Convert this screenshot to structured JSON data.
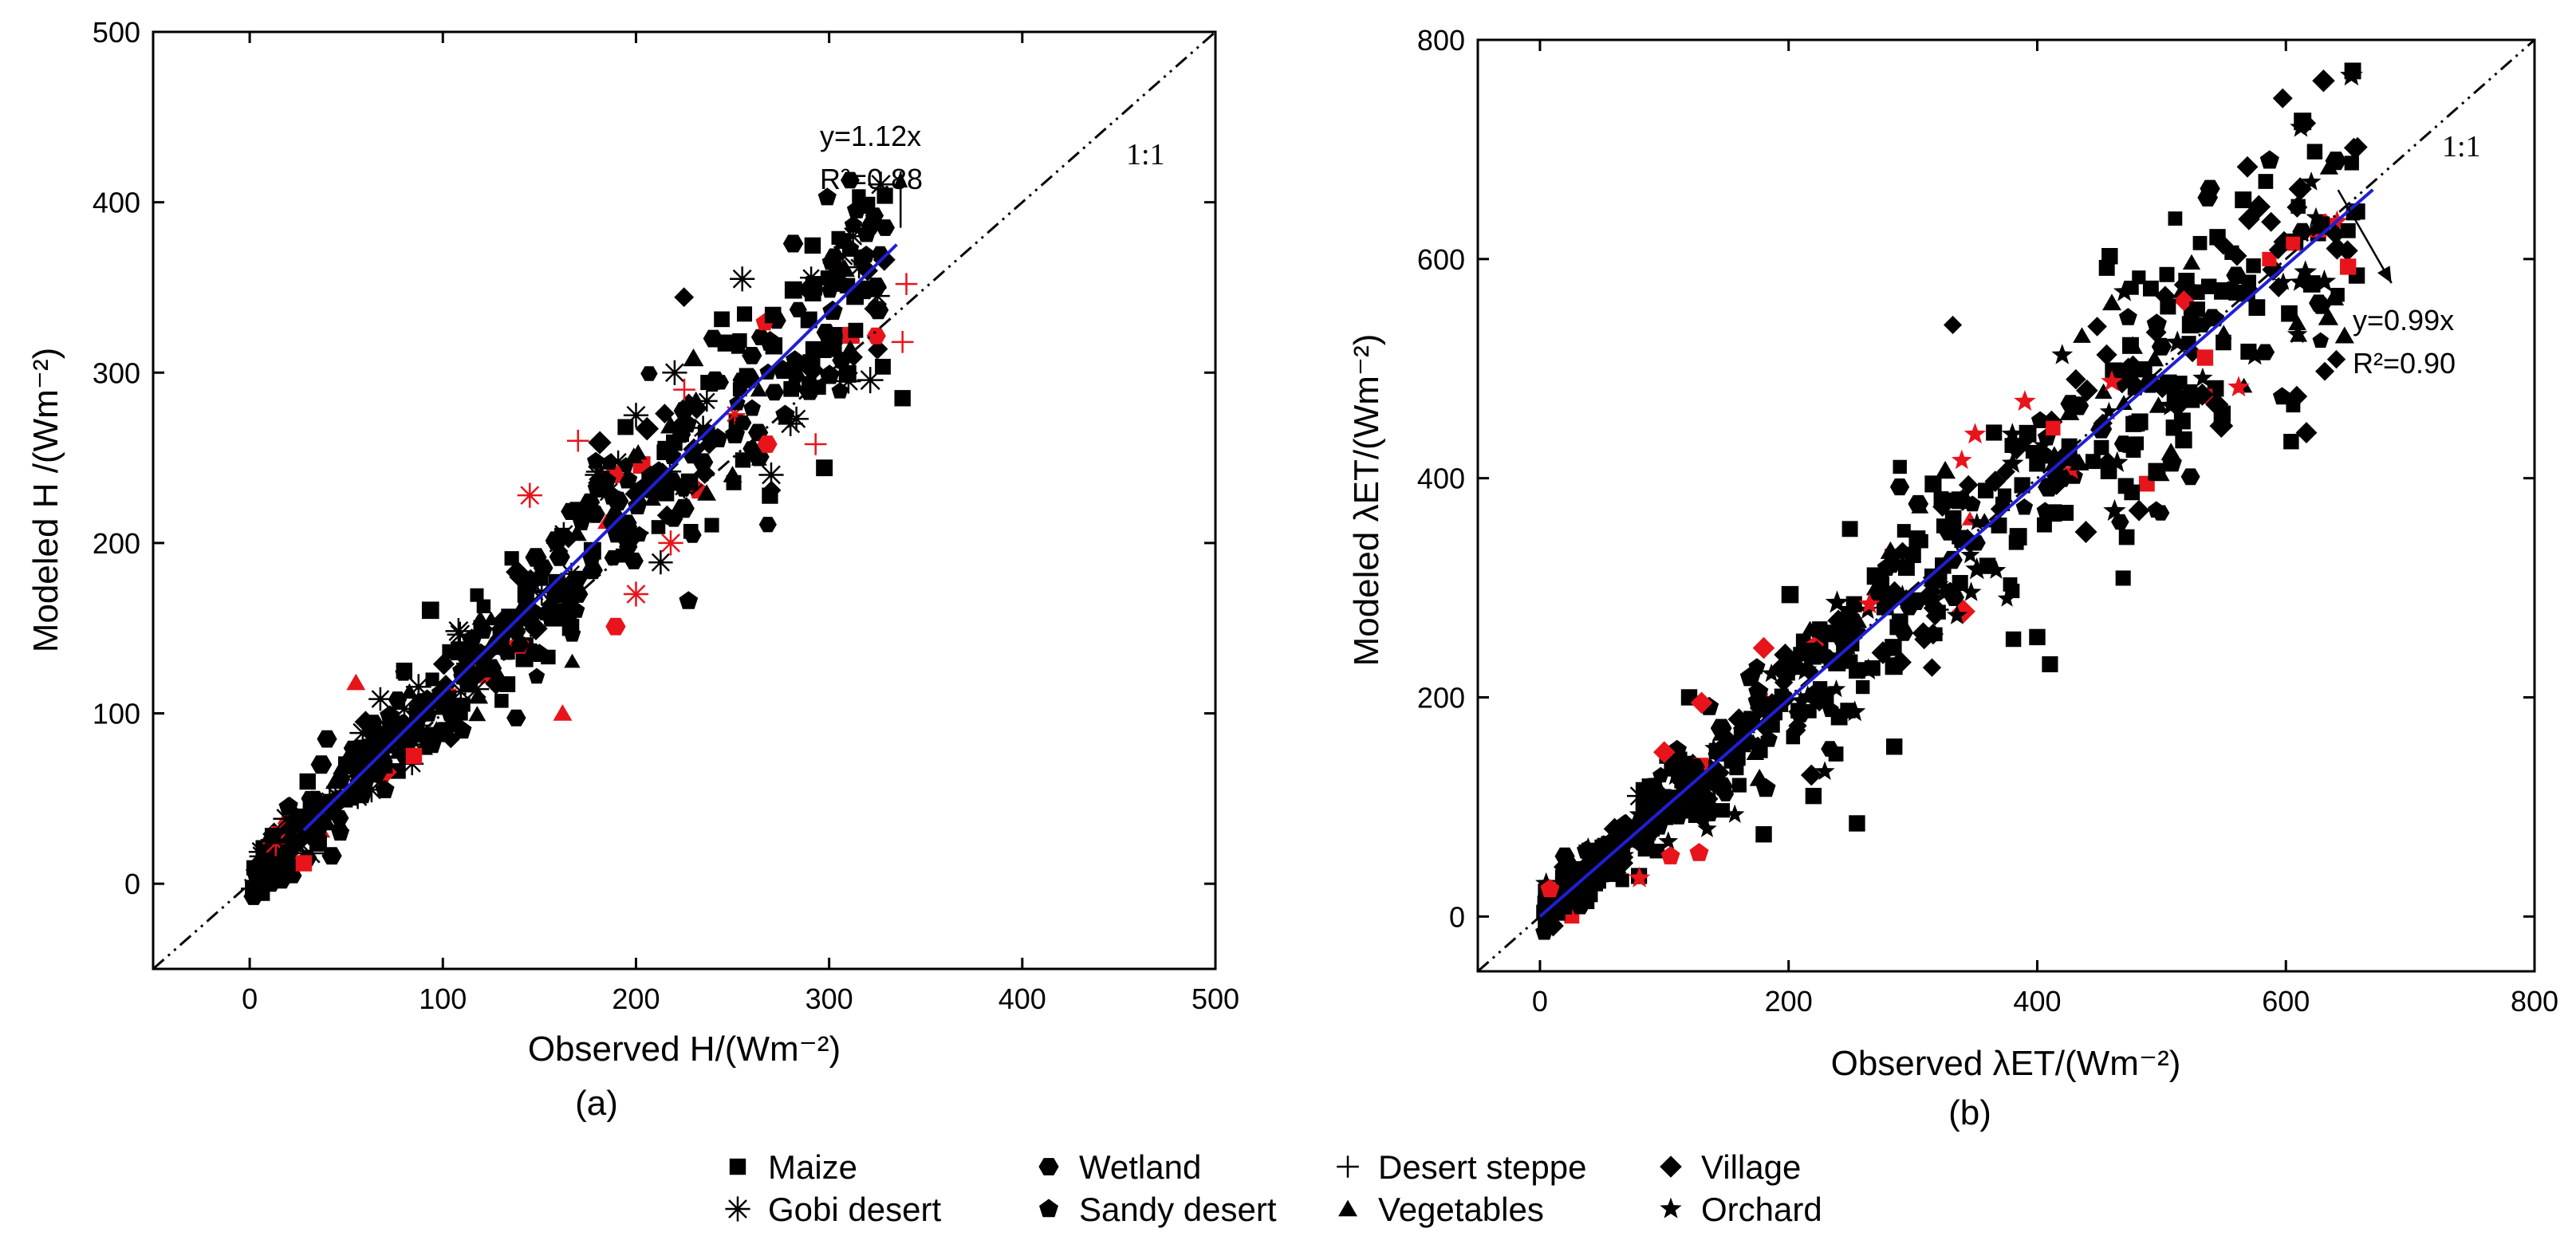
{
  "chart_data": [
    {
      "type": "scatter",
      "panel_label": "(a)",
      "xlabel": "Observed H/(Wm⁻²)",
      "ylabel": "Modeled H /(Wm⁻²)",
      "xlim": [
        -50,
        500
      ],
      "ylim": [
        -50,
        500
      ],
      "xticks": [
        0,
        100,
        200,
        300,
        400,
        500
      ],
      "yticks": [
        0,
        100,
        200,
        300,
        400,
        500
      ],
      "one_to_one_label": "1:1",
      "fit": {
        "slope": 1.12,
        "x_range": [
          28,
          335
        ],
        "equation": "y=1.12x",
        "r2_label": "R²=0.88",
        "color": "#1f1fd6"
      },
      "annotation_arrow": {
        "from": [
          337,
          385
        ],
        "to": [
          337,
          418
        ]
      },
      "sample_points": [
        {
          "x": 5,
          "y": 10,
          "m": "hexagon",
          "c": "black"
        },
        {
          "x": 12,
          "y": 28,
          "m": "square",
          "c": "black"
        },
        {
          "x": 20,
          "y": 45,
          "m": "pentagon",
          "c": "black"
        },
        {
          "x": 30,
          "y": 60,
          "m": "square",
          "c": "black"
        },
        {
          "x": 40,
          "y": 85,
          "m": "hexagon",
          "c": "black"
        },
        {
          "x": 50,
          "y": 70,
          "m": "square",
          "c": "black"
        },
        {
          "x": 60,
          "y": 95,
          "m": "diamond",
          "c": "black"
        },
        {
          "x": 70,
          "y": 55,
          "m": "pentagon",
          "c": "black"
        },
        {
          "x": 80,
          "y": 125,
          "m": "square",
          "c": "black"
        },
        {
          "x": 90,
          "y": 80,
          "m": "triangle",
          "c": "black"
        },
        {
          "x": 100,
          "y": 110,
          "m": "hexagon",
          "c": "black"
        },
        {
          "x": 110,
          "y": 90,
          "m": "pentagon",
          "c": "black"
        },
        {
          "x": 120,
          "y": 150,
          "m": "square",
          "c": "black"
        },
        {
          "x": 130,
          "y": 120,
          "m": "triangle",
          "c": "black"
        },
        {
          "x": 140,
          "y": 180,
          "m": "diamond",
          "c": "black"
        },
        {
          "x": 150,
          "y": 135,
          "m": "pentagon",
          "c": "black"
        },
        {
          "x": 160,
          "y": 200,
          "m": "asterisk",
          "c": "black"
        },
        {
          "x": 170,
          "y": 170,
          "m": "hexagon",
          "c": "black"
        },
        {
          "x": 180,
          "y": 240,
          "m": "asterisk",
          "c": "black"
        },
        {
          "x": 190,
          "y": 205,
          "m": "pentagon",
          "c": "black"
        },
        {
          "x": 200,
          "y": 275,
          "m": "asterisk",
          "c": "black"
        },
        {
          "x": 210,
          "y": 230,
          "m": "hexagon",
          "c": "black"
        },
        {
          "x": 220,
          "y": 300,
          "m": "asterisk",
          "c": "black"
        },
        {
          "x": 230,
          "y": 255,
          "m": "diamond",
          "c": "black"
        },
        {
          "x": 240,
          "y": 320,
          "m": "hexagon",
          "c": "black"
        },
        {
          "x": 250,
          "y": 240,
          "m": "triangle",
          "c": "black"
        },
        {
          "x": 255,
          "y": 355,
          "m": "asterisk",
          "c": "black"
        },
        {
          "x": 260,
          "y": 310,
          "m": "hexagon",
          "c": "black"
        },
        {
          "x": 270,
          "y": 240,
          "m": "asterisk",
          "c": "black"
        },
        {
          "x": 280,
          "y": 270,
          "m": "asterisk",
          "c": "black"
        },
        {
          "x": 305,
          "y": 360,
          "m": "hexagon",
          "c": "black"
        },
        {
          "x": 310,
          "y": 295,
          "m": "asterisk",
          "c": "black"
        },
        {
          "x": 325,
          "y": 345,
          "m": "asterisk",
          "c": "black"
        },
        {
          "x": 338,
          "y": 285,
          "m": "square",
          "c": "black"
        },
        {
          "x": 28,
          "y": 12,
          "m": "square",
          "c": "red"
        },
        {
          "x": 55,
          "y": 118,
          "m": "triangle",
          "c": "red"
        },
        {
          "x": 85,
          "y": 75,
          "m": "square",
          "c": "red"
        },
        {
          "x": 145,
          "y": 228,
          "m": "asterisk",
          "c": "red"
        },
        {
          "x": 162,
          "y": 100,
          "m": "triangle",
          "c": "red"
        },
        {
          "x": 170,
          "y": 260,
          "m": "plus",
          "c": "red"
        },
        {
          "x": 200,
          "y": 170,
          "m": "asterisk",
          "c": "red"
        },
        {
          "x": 218,
          "y": 200,
          "m": "asterisk",
          "c": "red"
        },
        {
          "x": 225,
          "y": 290,
          "m": "plus",
          "c": "red"
        },
        {
          "x": 268,
          "y": 258,
          "m": "hexagon",
          "c": "red"
        },
        {
          "x": 293,
          "y": 258,
          "m": "plus",
          "c": "red"
        },
        {
          "x": 338,
          "y": 318,
          "m": "plus",
          "c": "red"
        },
        {
          "x": 340,
          "y": 352,
          "m": "plus",
          "c": "red"
        }
      ]
    },
    {
      "type": "scatter",
      "panel_label": "(b)",
      "xlabel": "Observed λET/(Wm⁻²)",
      "ylabel": "Modeled λET/(Wm⁻²)",
      "xlim": [
        -50,
        800
      ],
      "ylim": [
        -50,
        800
      ],
      "xticks": [
        0,
        200,
        400,
        600,
        800
      ],
      "yticks": [
        0,
        200,
        400,
        600,
        800
      ],
      "one_to_one_label": "1:1",
      "fit": {
        "slope": 0.99,
        "x_range": [
          0,
          670
        ],
        "equation": "y=0.99x",
        "r2_label": "R²=0.90",
        "color": "#1f1fd6"
      },
      "annotation_arrow": {
        "from": [
          642,
          663
        ],
        "to": [
          685,
          578
        ]
      },
      "sample_points": [
        {
          "x": 5,
          "y": 30,
          "m": "star",
          "c": "black"
        },
        {
          "x": 20,
          "y": 55,
          "m": "hexagon",
          "c": "black"
        },
        {
          "x": 40,
          "y": 60,
          "m": "square",
          "c": "black"
        },
        {
          "x": 60,
          "y": 80,
          "m": "diamond",
          "c": "black"
        },
        {
          "x": 80,
          "y": 110,
          "m": "asterisk",
          "c": "black"
        },
        {
          "x": 100,
          "y": 100,
          "m": "pentagon",
          "c": "black"
        },
        {
          "x": 120,
          "y": 200,
          "m": "square",
          "c": "black"
        },
        {
          "x": 140,
          "y": 120,
          "m": "plus",
          "c": "black"
        },
        {
          "x": 160,
          "y": 180,
          "m": "diamond",
          "c": "black"
        },
        {
          "x": 180,
          "y": 75,
          "m": "square",
          "c": "black"
        },
        {
          "x": 200,
          "y": 230,
          "m": "hexagon",
          "c": "black"
        },
        {
          "x": 220,
          "y": 110,
          "m": "square",
          "c": "black"
        },
        {
          "x": 240,
          "y": 270,
          "m": "diamond",
          "c": "black"
        },
        {
          "x": 255,
          "y": 85,
          "m": "square",
          "c": "black"
        },
        {
          "x": 270,
          "y": 300,
          "m": "triangle",
          "c": "black"
        },
        {
          "x": 285,
          "y": 155,
          "m": "square",
          "c": "black"
        },
        {
          "x": 300,
          "y": 330,
          "m": "square",
          "c": "black"
        },
        {
          "x": 320,
          "y": 280,
          "m": "plus",
          "c": "black"
        },
        {
          "x": 340,
          "y": 380,
          "m": "diamond",
          "c": "black"
        },
        {
          "x": 360,
          "y": 320,
          "m": "square",
          "c": "black"
        },
        {
          "x": 380,
          "y": 440,
          "m": "star",
          "c": "black"
        },
        {
          "x": 400,
          "y": 255,
          "m": "square",
          "c": "black"
        },
        {
          "x": 420,
          "y": 400,
          "m": "hexagon",
          "c": "black"
        },
        {
          "x": 440,
          "y": 480,
          "m": "diamond",
          "c": "black"
        },
        {
          "x": 460,
          "y": 560,
          "m": "triangle",
          "c": "black"
        },
        {
          "x": 470,
          "y": 570,
          "m": "star",
          "c": "black"
        },
        {
          "x": 480,
          "y": 450,
          "m": "square",
          "c": "black"
        },
        {
          "x": 500,
          "y": 520,
          "m": "hexagon",
          "c": "black"
        },
        {
          "x": 520,
          "y": 580,
          "m": "square",
          "c": "black"
        },
        {
          "x": 545,
          "y": 620,
          "m": "square",
          "c": "black"
        },
        {
          "x": 560,
          "y": 585,
          "m": "hexagon",
          "c": "black"
        },
        {
          "x": 575,
          "y": 512,
          "m": "star",
          "c": "black"
        },
        {
          "x": 612,
          "y": 720,
          "m": "star",
          "c": "black"
        },
        {
          "x": 8,
          "y": 25,
          "m": "pentagon",
          "c": "red"
        },
        {
          "x": 80,
          "y": 35,
          "m": "star",
          "c": "red"
        },
        {
          "x": 100,
          "y": 150,
          "m": "diamond",
          "c": "red"
        },
        {
          "x": 105,
          "y": 55,
          "m": "pentagon",
          "c": "red"
        },
        {
          "x": 128,
          "y": 58,
          "m": "pentagon",
          "c": "red"
        },
        {
          "x": 130,
          "y": 195,
          "m": "diamond",
          "c": "red"
        },
        {
          "x": 180,
          "y": 245,
          "m": "diamond",
          "c": "red"
        },
        {
          "x": 265,
          "y": 285,
          "m": "star",
          "c": "red"
        },
        {
          "x": 350,
          "y": 440,
          "m": "star",
          "c": "red"
        },
        {
          "x": 390,
          "y": 470,
          "m": "star",
          "c": "red"
        },
        {
          "x": 460,
          "y": 488,
          "m": "star",
          "c": "red"
        },
        {
          "x": 535,
          "y": 510,
          "m": "square",
          "c": "red"
        },
        {
          "x": 562,
          "y": 483,
          "m": "star",
          "c": "red"
        },
        {
          "x": 650,
          "y": 593,
          "m": "square",
          "c": "red"
        }
      ]
    }
  ],
  "legend": {
    "entries": [
      {
        "label": "Maize",
        "marker": "square"
      },
      {
        "label": "Gobi desert",
        "marker": "asterisk"
      },
      {
        "label": "Wetland",
        "marker": "hexagon"
      },
      {
        "label": "Sandy desert",
        "marker": "pentagon"
      },
      {
        "label": "Desert steppe",
        "marker": "plus"
      },
      {
        "label": "Vegetables",
        "marker": "triangle"
      },
      {
        "label": "Village",
        "marker": "diamond"
      },
      {
        "label": "Orchard",
        "marker": "star"
      }
    ]
  },
  "colors": {
    "black": "#000000",
    "red": "#e8141b",
    "fit_line": "#1f1fd6"
  }
}
